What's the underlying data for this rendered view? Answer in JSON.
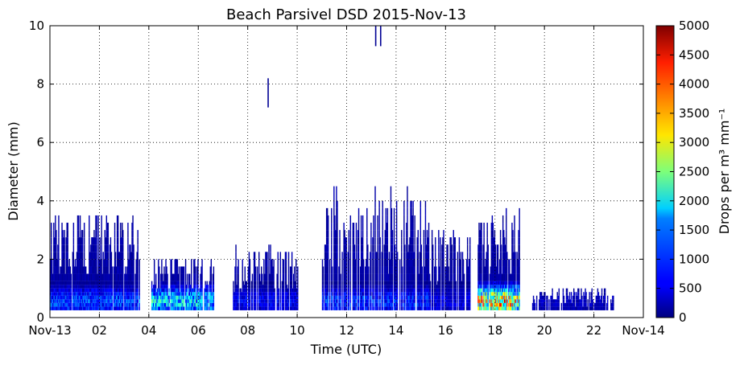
{
  "chart_data": {
    "type": "heatmap",
    "title": "Beach Parsivel DSD 2015-Nov-13",
    "xlabel": "Time (UTC)",
    "ylabel": "Diameter (mm)",
    "xlim": [
      0,
      24
    ],
    "ylim": [
      0,
      10
    ],
    "xticks": [
      0,
      2,
      4,
      6,
      8,
      10,
      12,
      14,
      16,
      18,
      20,
      22,
      24
    ],
    "xticklabels": [
      "Nov-13",
      "02",
      "04",
      "06",
      "08",
      "10",
      "12",
      "14",
      "16",
      "18",
      "20",
      "22",
      "Nov-14"
    ],
    "yticks": [
      0,
      2,
      4,
      6,
      8,
      10
    ],
    "yticklabels": [
      "0",
      "2",
      "4",
      "6",
      "8",
      "10"
    ],
    "grid": true,
    "colormap": "jet",
    "colorbar": {
      "label": "Drops per m³ mm⁻¹",
      "range": [
        0,
        5000
      ],
      "ticks": [
        0,
        500,
        1000,
        1500,
        2000,
        2500,
        3000,
        3500,
        4000,
        4500,
        5000
      ],
      "ticklabels": [
        "0",
        "500",
        "1000",
        "1500",
        "2000",
        "2500",
        "3000",
        "3500",
        "4000",
        "4500",
        "5000"
      ]
    },
    "rain_periods": [
      {
        "start": 0.0,
        "end": 3.6,
        "max_diameter": 3.5,
        "peak_concentration": 1500
      },
      {
        "start": 4.1,
        "end": 6.6,
        "max_diameter": 2.0,
        "peak_concentration": 2500
      },
      {
        "start": 7.4,
        "end": 10.0,
        "max_diameter": 2.3,
        "peak_concentration": 900
      },
      {
        "start": 11.0,
        "end": 15.3,
        "max_diameter": 4.2,
        "peak_concentration": 1300
      },
      {
        "start": 15.3,
        "end": 17.0,
        "max_diameter": 3.0,
        "peak_concentration": 800
      },
      {
        "start": 17.3,
        "end": 19.0,
        "max_diameter": 3.6,
        "peak_concentration": 4800
      },
      {
        "start": 19.5,
        "end": 22.8,
        "max_diameter": 1.0,
        "peak_concentration": 500
      }
    ],
    "isolated_large_drops": [
      {
        "time": 8.8,
        "diameter_range": [
          7.2,
          8.2
        ]
      },
      {
        "time": 13.15,
        "diameter_range": [
          9.3,
          10.0
        ]
      },
      {
        "time": 13.35,
        "diameter_range": [
          9.3,
          10.0
        ]
      }
    ]
  }
}
